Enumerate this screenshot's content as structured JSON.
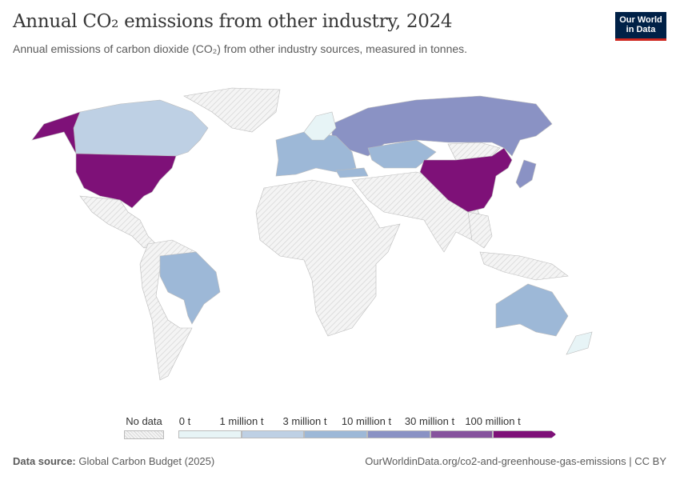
{
  "header": {
    "title": "Annual CO₂ emissions from other industry, 2024",
    "subtitle": "Annual emissions of carbon dioxide (CO₂) from other industry sources, measured in tonnes.",
    "logo_text": "Our World in Data"
  },
  "legend": {
    "no_data_label": "No data",
    "bins": [
      {
        "label": "0 t",
        "color": "#e7f4f6"
      },
      {
        "label": "1 million t",
        "color": "#bed0e4"
      },
      {
        "label": "3 million t",
        "color": "#9db8d7"
      },
      {
        "label": "10 million t",
        "color": "#8a92c4"
      },
      {
        "label": "30 million t",
        "color": "#86539d"
      },
      {
        "label": "100 million t",
        "color": "#7e1178"
      }
    ],
    "no_data_color": "#e6e6e6"
  },
  "map": {
    "regions": [
      {
        "name": "United States",
        "bin": 5
      },
      {
        "name": "China",
        "bin": 5
      },
      {
        "name": "Canada",
        "bin": 1
      },
      {
        "name": "Russia",
        "bin": 3
      },
      {
        "name": "Kazakhstan",
        "bin": 2
      },
      {
        "name": "Brazil",
        "bin": 2
      },
      {
        "name": "Australia",
        "bin": 2
      },
      {
        "name": "Japan",
        "bin": 3
      },
      {
        "name": "Turkey",
        "bin": 2
      },
      {
        "name": "Europe",
        "bin": 2
      },
      {
        "name": "New Zealand",
        "bin": 0
      }
    ]
  },
  "footer": {
    "source_label": "Data source:",
    "source": "Global Carbon Budget (2025)",
    "url": "OurWorldinData.org/co2-and-greenhouse-gas-emissions | CC BY"
  }
}
